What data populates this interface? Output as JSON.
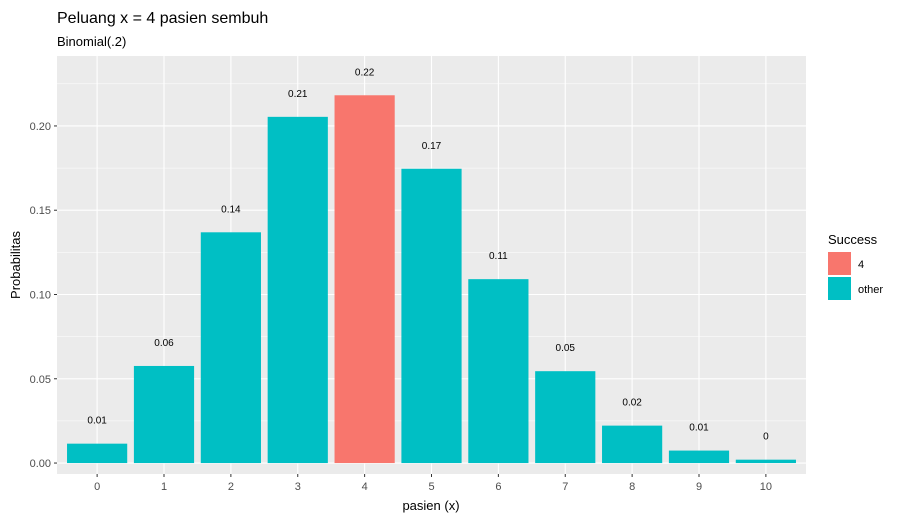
{
  "chart_data": {
    "type": "bar",
    "title": "Peluang x = 4 pasien sembuh",
    "subtitle": "Binomial(.2)",
    "xlabel": "pasien (x)",
    "ylabel": "Probabilitas",
    "categories": [
      "0",
      "1",
      "2",
      "3",
      "4",
      "5",
      "6",
      "7",
      "8",
      "9",
      "10"
    ],
    "values": [
      0.0115,
      0.0576,
      0.1369,
      0.2054,
      0.2182,
      0.1746,
      0.1091,
      0.0545,
      0.0222,
      0.0074,
      0.002
    ],
    "data_labels": [
      "0.01",
      "0.06",
      "0.14",
      "0.21",
      "0.22",
      "0.17",
      "0.11",
      "0.05",
      "0.02",
      "0.01",
      "0"
    ],
    "groups": [
      "other",
      "other",
      "other",
      "other",
      "4",
      "other",
      "other",
      "other",
      "other",
      "other",
      "other"
    ],
    "ylim": [
      -0.0065,
      0.2415
    ],
    "yticks": [
      0.0,
      0.05,
      0.1,
      0.15,
      0.2
    ],
    "ytick_labels": [
      "0.00",
      "0.05",
      "0.10",
      "0.15",
      "0.20"
    ],
    "grid": true,
    "legend": {
      "title": "Success",
      "position": "right",
      "entries": [
        {
          "label": "4",
          "color": "#F8766D"
        },
        {
          "label": "other",
          "color": "#00BFC4"
        }
      ]
    },
    "colors": {
      "4": "#F8766D",
      "other": "#00BFC4",
      "panel": "#EBEBEB",
      "grid": "#FFFFFF"
    }
  }
}
